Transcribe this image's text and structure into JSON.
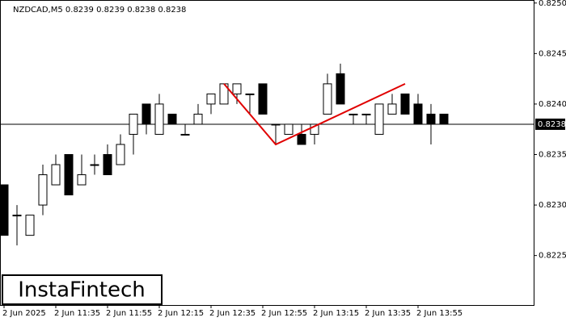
{
  "chart_data": {
    "type": "candlestick",
    "title": "NZDCAD,M5  0.8239 0.8239 0.8238 0.8238",
    "categories": [
      "2 Jun 2025",
      null,
      null,
      null,
      "2 Jun 11:35",
      null,
      null,
      null,
      "2 Jun 11:55",
      null,
      null,
      null,
      "2 Jun 12:15",
      null,
      null,
      null,
      "2 Jun 12:35",
      null,
      null,
      null,
      "2 Jun 12:55",
      null,
      null,
      null,
      "2 Jun 13:15",
      null,
      null,
      null,
      "2 Jun 13:35",
      null,
      null,
      null,
      "2 Jun 13:55",
      null,
      null
    ],
    "open": [
      0.8232,
      0.8229,
      0.8227,
      0.823,
      0.8232,
      0.8235,
      0.8232,
      0.8234,
      0.8235,
      0.8234,
      0.8237,
      0.824,
      0.8237,
      0.8239,
      0.8237,
      0.8238,
      0.824,
      0.824,
      0.8241,
      0.8241,
      0.8242,
      0.8238,
      0.8237,
      0.8237,
      0.8237,
      0.8239,
      0.8243,
      0.8239,
      0.8239,
      0.8237,
      0.8239,
      0.8241,
      0.824,
      0.8239,
      0.8239
    ],
    "high": [
      0.8232,
      0.823,
      0.8229,
      0.8234,
      0.8235,
      0.8235,
      0.8235,
      0.8235,
      0.8236,
      0.8237,
      0.8239,
      0.824,
      0.8241,
      0.8239,
      0.8238,
      0.824,
      0.8241,
      0.8242,
      0.8242,
      0.8241,
      0.8242,
      0.8238,
      0.8238,
      0.8238,
      0.8238,
      0.8243,
      0.8244,
      0.8239,
      0.8239,
      0.824,
      0.8241,
      0.8241,
      0.8241,
      0.824,
      0.8239
    ],
    "low": [
      0.8227,
      0.8226,
      0.8227,
      0.8229,
      0.8232,
      0.8231,
      0.8232,
      0.8233,
      0.8233,
      0.8234,
      0.8235,
      0.8237,
      0.8237,
      0.8238,
      0.8237,
      0.8238,
      0.8239,
      0.824,
      0.824,
      0.8239,
      0.8239,
      0.8236,
      0.8237,
      0.8236,
      0.8236,
      0.8239,
      0.824,
      0.8238,
      0.8238,
      0.8237,
      0.8239,
      0.8239,
      0.8238,
      0.8236,
      0.8238
    ],
    "close": [
      0.8227,
      0.8229,
      0.8229,
      0.8233,
      0.8234,
      0.8231,
      0.8233,
      0.8234,
      0.8233,
      0.8236,
      0.8239,
      0.8238,
      0.824,
      0.8238,
      0.8237,
      0.8239,
      0.8241,
      0.8242,
      0.8242,
      0.8241,
      0.8239,
      0.8238,
      0.8238,
      0.8236,
      0.8238,
      0.8242,
      0.824,
      0.8239,
      0.8239,
      0.824,
      0.824,
      0.8239,
      0.8238,
      0.8238,
      0.8238
    ],
    "up_color": "#ffffff",
    "down_color": "#000000",
    "ylim": [
      0.82201,
      0.82503
    ],
    "yticks": [
      {
        "value": 0.825,
        "label": "0.8250"
      },
      0.8245,
      {
        "value": 0.824,
        "label": "0.8240"
      },
      0.8235,
      {
        "value": 0.823,
        "label": "0.8230"
      },
      0.8225
    ],
    "last_price": 0.8238,
    "pattern": {
      "color": "#e00000",
      "x": [
        17,
        21,
        31
      ],
      "values": [
        0.8242,
        0.8236,
        0.8242
      ]
    }
  },
  "logo": "InstaFintech"
}
